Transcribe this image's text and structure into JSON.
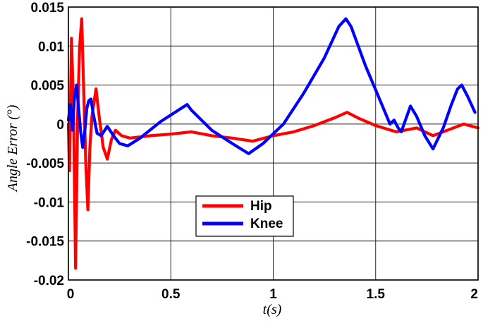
{
  "chart_data": {
    "type": "line",
    "title": "",
    "xlabel": "t(s)",
    "ylabel": "Angle Error (°)",
    "xlim": [
      0,
      2
    ],
    "ylim": [
      -0.02,
      0.015
    ],
    "xticks": [
      0,
      0.5,
      1,
      1.5,
      2
    ],
    "xtick_labels": [
      "0",
      "0.5",
      "1",
      "1.5",
      "2"
    ],
    "yticks": [
      0.015,
      0.01,
      0.005,
      0,
      -0.005,
      -0.01,
      -0.015,
      -0.02
    ],
    "ytick_labels": [
      "0.015",
      "0.01",
      "0.005",
      "0",
      "-0.005",
      "-0.01",
      "-0.015",
      "-0.02"
    ],
    "grid": true,
    "legend_position": "lower-center",
    "series": [
      {
        "name": "Hip",
        "color": "#ff0000",
        "points": [
          [
            0,
            0
          ],
          [
            0.005,
            -0.006
          ],
          [
            0.015,
            0.011
          ],
          [
            0.025,
            0.002
          ],
          [
            0.035,
            -0.0185
          ],
          [
            0.045,
            0.001
          ],
          [
            0.055,
            0.01
          ],
          [
            0.065,
            0.0135
          ],
          [
            0.075,
            0.004
          ],
          [
            0.085,
            -0.005
          ],
          [
            0.095,
            -0.011
          ],
          [
            0.105,
            -0.003
          ],
          [
            0.115,
            0.001
          ],
          [
            0.135,
            0.0045
          ],
          [
            0.15,
            0.001
          ],
          [
            0.17,
            -0.003
          ],
          [
            0.19,
            -0.0045
          ],
          [
            0.21,
            -0.002
          ],
          [
            0.23,
            -0.0008
          ],
          [
            0.26,
            -0.0015
          ],
          [
            0.3,
            -0.0018
          ],
          [
            0.4,
            -0.0015
          ],
          [
            0.5,
            -0.0013
          ],
          [
            0.6,
            -0.001
          ],
          [
            0.7,
            -0.0015
          ],
          [
            0.8,
            -0.0018
          ],
          [
            0.9,
            -0.0022
          ],
          [
            1.0,
            -0.0015
          ],
          [
            1.1,
            -0.001
          ],
          [
            1.2,
            -0.0002
          ],
          [
            1.3,
            0.0008
          ],
          [
            1.36,
            0.0015
          ],
          [
            1.42,
            0.0007
          ],
          [
            1.5,
            -0.0002
          ],
          [
            1.6,
            -0.001
          ],
          [
            1.7,
            -0.0005
          ],
          [
            1.78,
            -0.0015
          ],
          [
            1.85,
            -0.0008
          ],
          [
            1.93,
            0
          ],
          [
            2.0,
            -0.0005
          ]
        ]
      },
      {
        "name": "Knee",
        "color": "#0000ff",
        "points": [
          [
            0,
            0.0005
          ],
          [
            0.01,
            0.0025
          ],
          [
            0.02,
            -0.0008
          ],
          [
            0.03,
            0.0035
          ],
          [
            0.04,
            0.005
          ],
          [
            0.05,
            0.002
          ],
          [
            0.06,
            -0.001
          ],
          [
            0.07,
            -0.003
          ],
          [
            0.08,
            -0.001
          ],
          [
            0.09,
            0.002
          ],
          [
            0.1,
            0.003
          ],
          [
            0.11,
            0.0032
          ],
          [
            0.12,
            0.0015
          ],
          [
            0.14,
            -0.0012
          ],
          [
            0.16,
            -0.0015
          ],
          [
            0.19,
            -0.0003
          ],
          [
            0.22,
            -0.0015
          ],
          [
            0.25,
            -0.0025
          ],
          [
            0.29,
            -0.0028
          ],
          [
            0.35,
            -0.0018
          ],
          [
            0.45,
            0.0003
          ],
          [
            0.55,
            0.002
          ],
          [
            0.58,
            0.0025
          ],
          [
            0.6,
            0.0018
          ],
          [
            0.7,
            -0.0008
          ],
          [
            0.8,
            -0.0025
          ],
          [
            0.88,
            -0.0038
          ],
          [
            0.95,
            -0.0025
          ],
          [
            1.05,
            0
          ],
          [
            1.15,
            0.004
          ],
          [
            1.25,
            0.0085
          ],
          [
            1.32,
            0.0125
          ],
          [
            1.355,
            0.0135
          ],
          [
            1.38,
            0.0125
          ],
          [
            1.45,
            0.0075
          ],
          [
            1.53,
            0.0025
          ],
          [
            1.57,
            0
          ],
          [
            1.59,
            0.0005
          ],
          [
            1.61,
            -0.0005
          ],
          [
            1.625,
            -0.001
          ],
          [
            1.67,
            0.0023
          ],
          [
            1.7,
            0.001
          ],
          [
            1.74,
            -0.0015
          ],
          [
            1.78,
            -0.0032
          ],
          [
            1.83,
            -0.0005
          ],
          [
            1.87,
            0.0025
          ],
          [
            1.9,
            0.0045
          ],
          [
            1.92,
            0.005
          ],
          [
            1.95,
            0.0035
          ],
          [
            1.985,
            0.0015
          ]
        ]
      }
    ]
  }
}
